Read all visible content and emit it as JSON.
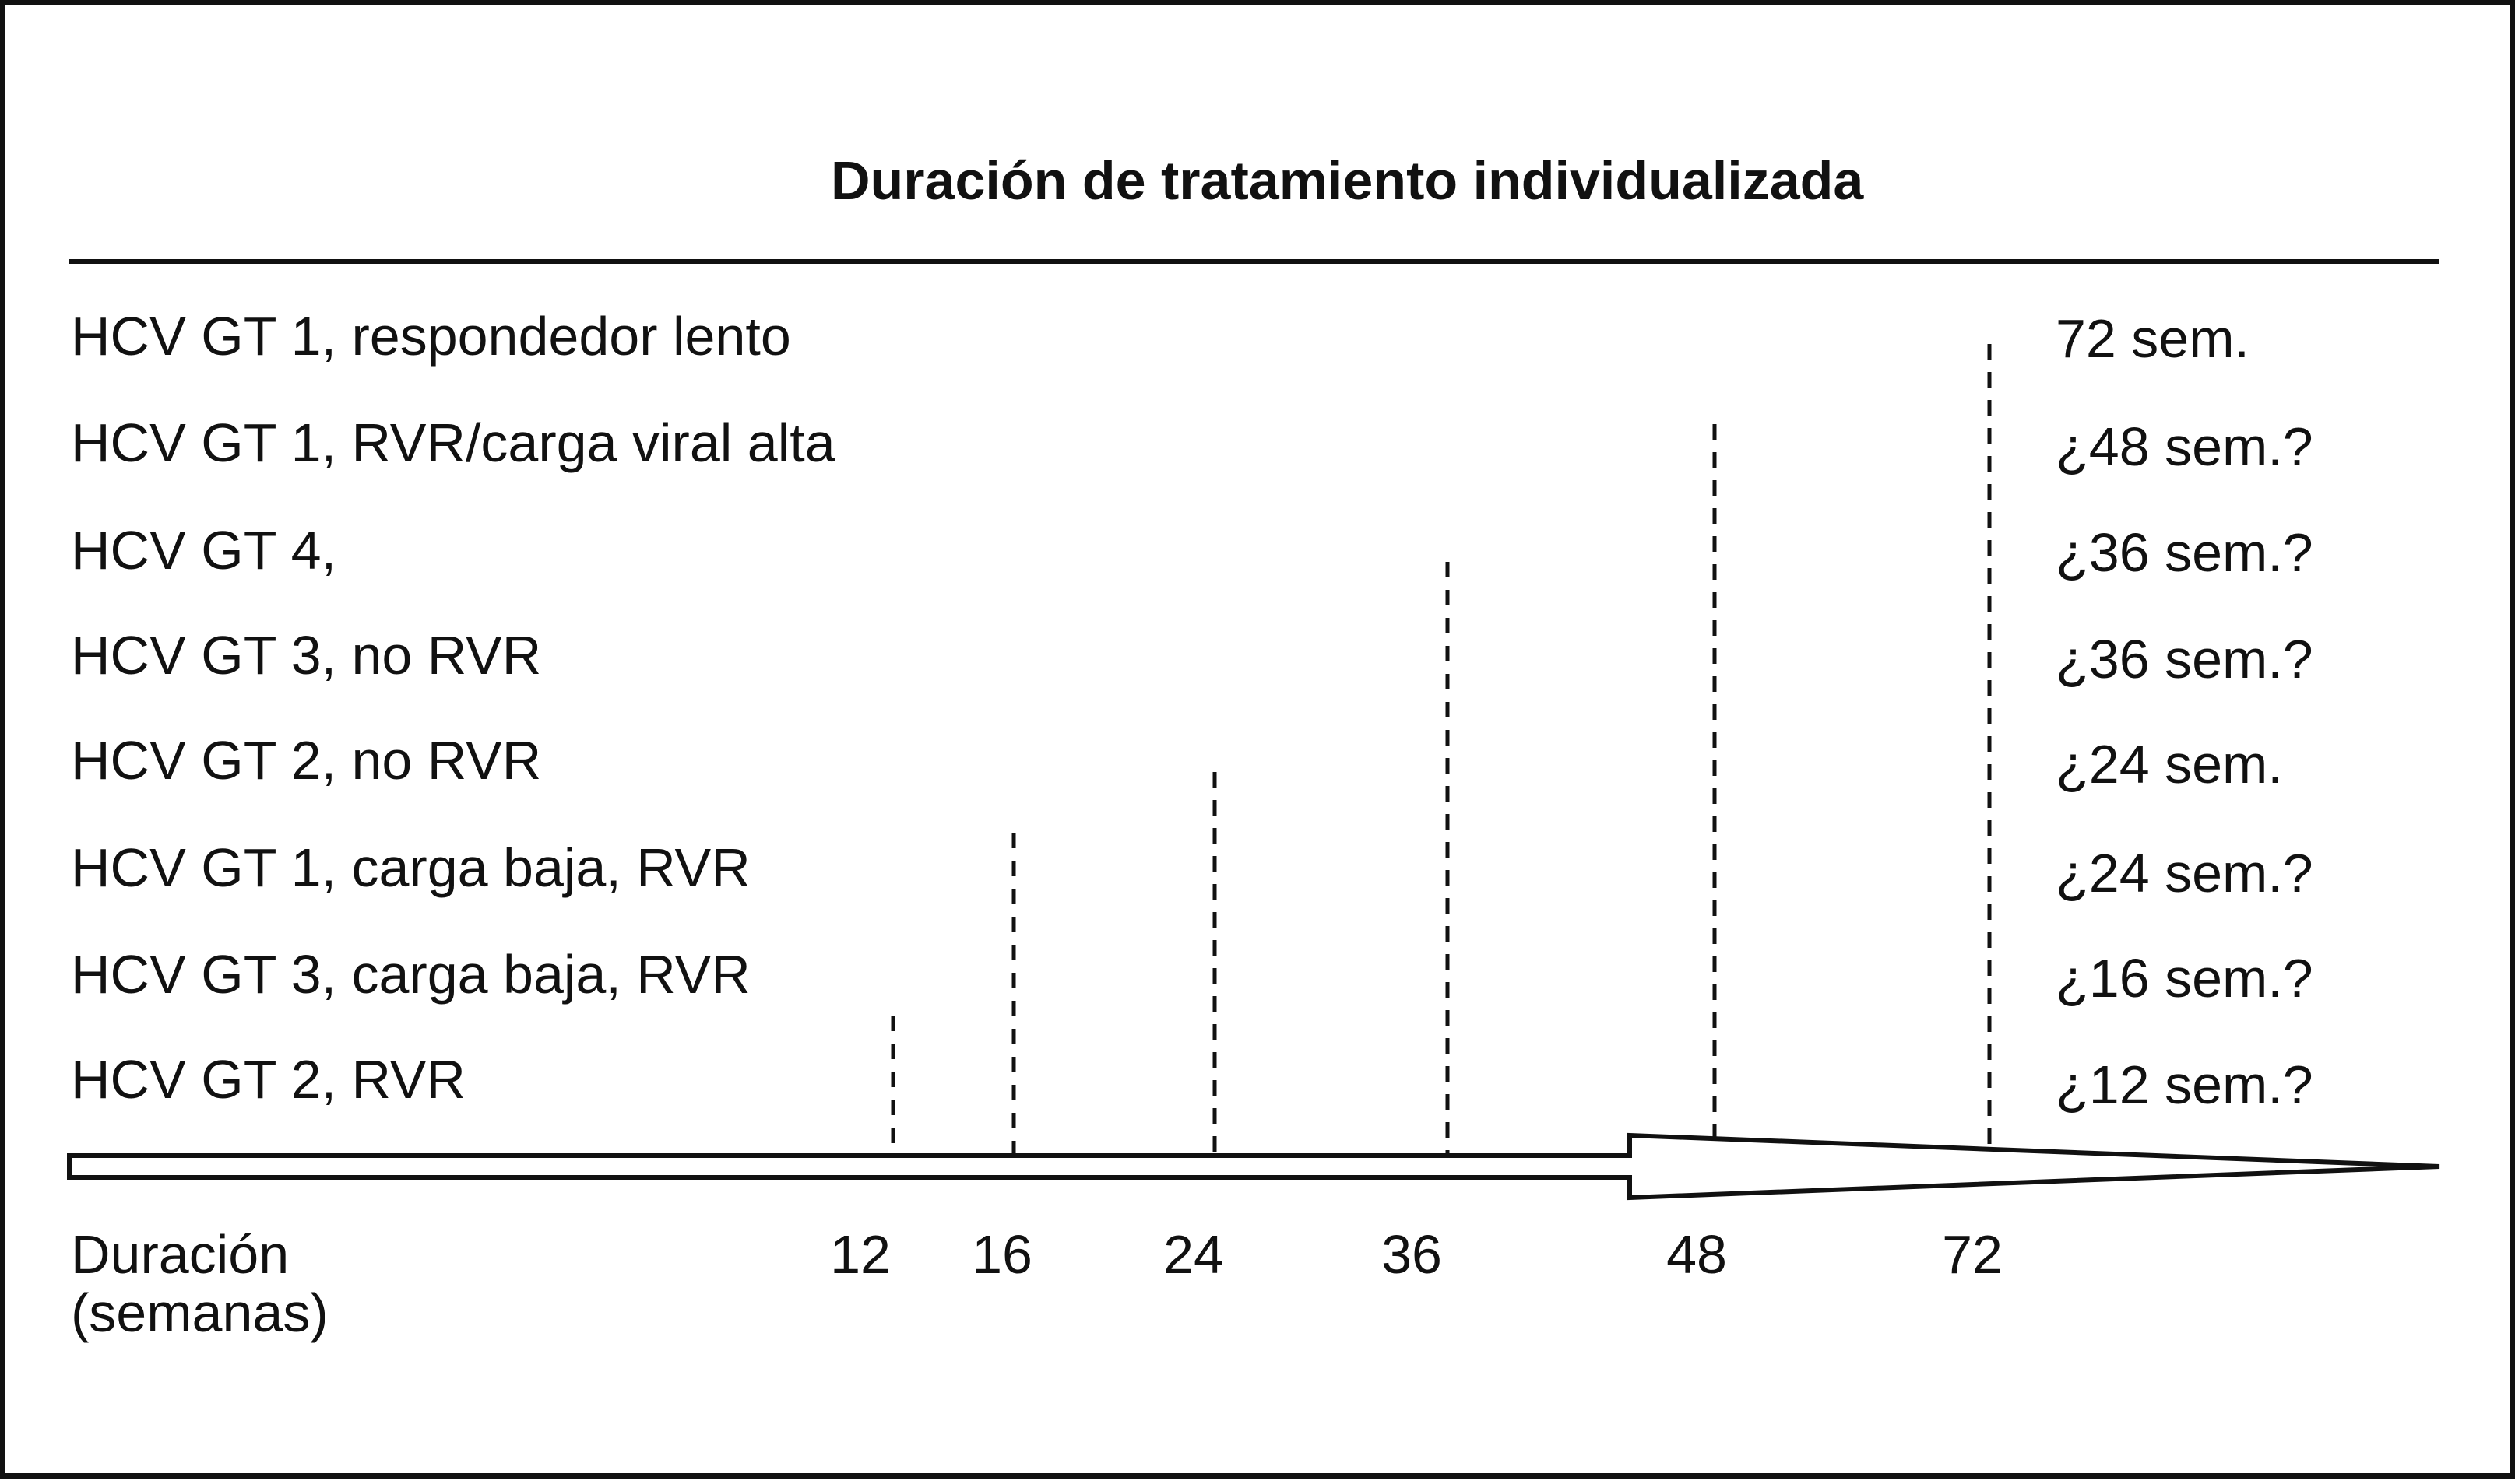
{
  "title": "Duración de tratamiento individualizada",
  "rows": [
    {
      "label": "HCV GT 1, respondedor lento",
      "duration": "72 sem.",
      "weeks": 72
    },
    {
      "label": "HCV GT 1, RVR/carga viral alta",
      "duration": "¿48 sem.?",
      "weeks": 48
    },
    {
      "label": "HCV GT 4,",
      "duration": "¿36 sem.?",
      "weeks": 36
    },
    {
      "label": "HCV GT 3, no RVR",
      "duration": "¿36 sem.?",
      "weeks": 36
    },
    {
      "label": "HCV GT 2, no RVR",
      "duration": "¿24 sem.",
      "weeks": 24
    },
    {
      "label": "HCV GT 1, carga baja, RVR",
      "duration": "¿24 sem.?",
      "weeks": 24
    },
    {
      "label": "HCV GT 3, carga baja, RVR",
      "duration": "¿16 sem.?",
      "weeks": 16
    },
    {
      "label": "HCV GT 2, RVR",
      "duration": "¿12 sem.?",
      "weeks": 12
    }
  ],
  "axis": {
    "title_line1": "Duración",
    "title_line2": "(semanas)",
    "ticks": [
      "12",
      "16",
      "24",
      "36",
      "48",
      "72"
    ]
  }
}
